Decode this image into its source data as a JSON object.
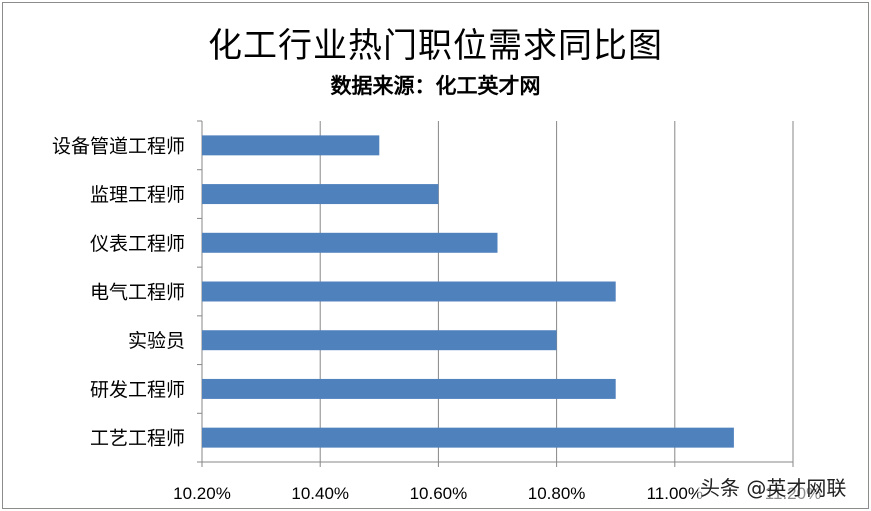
{
  "chart_data": {
    "type": "bar",
    "orientation": "horizontal",
    "title": "化工行业热门职位需求同比图",
    "subtitle": "数据来源：化工英才网",
    "categories": [
      "设备管道工程师",
      "监理工程师",
      "仪表工程师",
      "电气工程师",
      "实验员",
      "研发工程师",
      "工艺工程师"
    ],
    "values": [
      10.5,
      10.6,
      10.7,
      10.9,
      10.8,
      10.9,
      11.1
    ],
    "value_unit": "%",
    "xlim": [
      10.2,
      11.2
    ],
    "x_ticks": [
      "10.20%",
      "10.40%",
      "10.60%",
      "10.80%",
      "11.00%",
      "11.20%"
    ],
    "grid": true,
    "bar_color": "#4f81bd"
  },
  "watermark": "头条 @英才网联"
}
